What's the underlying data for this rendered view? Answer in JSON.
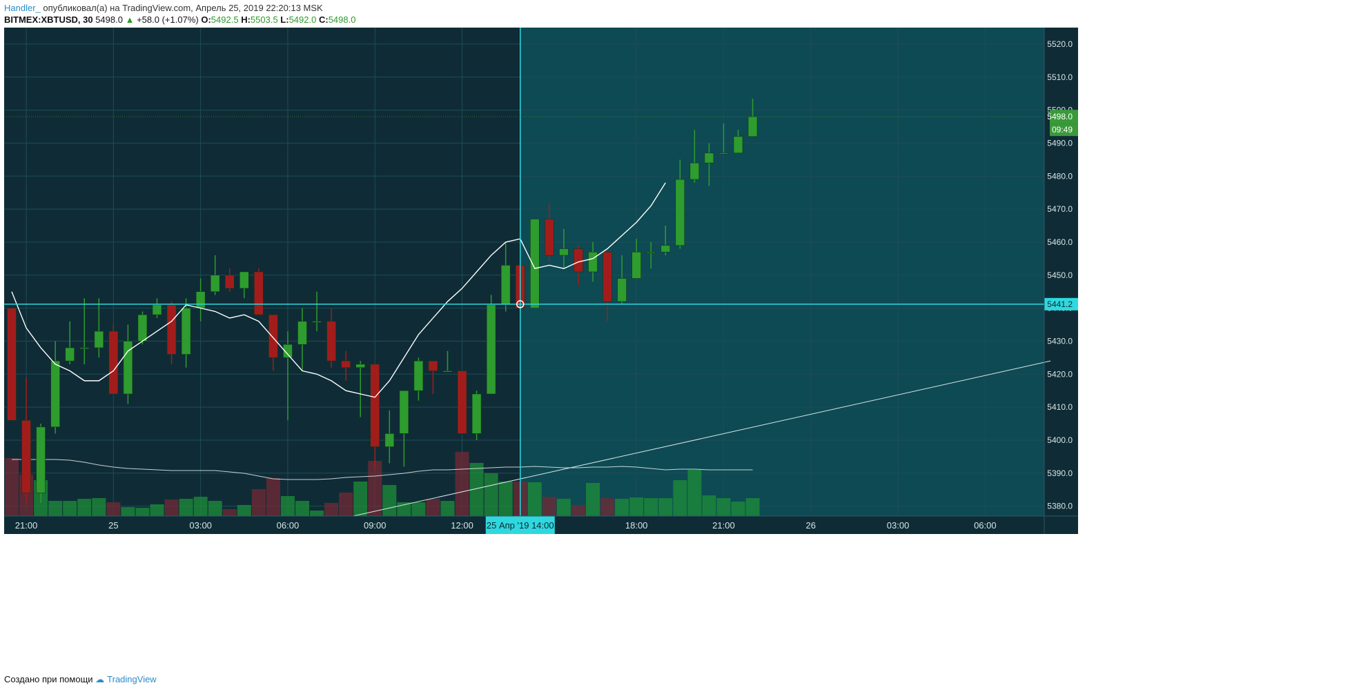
{
  "header": {
    "author": "Handler_",
    "published": "опубликовал(а) на TradingView.com, Апрель 25, 2019 22:20:13 MSK",
    "symbol": "BITMEX:XBTUSD, 30",
    "last": "5498.0",
    "change": "+58.0 (+1.07%)",
    "o_label": "O:",
    "o": "5492.5",
    "h_label": "H:",
    "h": "5503.5",
    "l_label": "L:",
    "l": "5492.0",
    "c_label": "C:",
    "c": "5498.0"
  },
  "footer": {
    "text": "Создано при помощи",
    "brand": "TradingView"
  },
  "colors": {
    "bg_left": "#0f2c36",
    "bg_right": "#0e4a53",
    "grid": "#1f4d57",
    "up": "#2e9c2e",
    "down": "#a31c1c",
    "ma": "#ffffff",
    "crosshair": "#2fd8df",
    "axis_text": "#d8e4e6",
    "price_tag": "#3a9a3a"
  },
  "chart_data": {
    "type": "candlestick",
    "y_ticks": [
      5380,
      5390,
      5400,
      5410,
      5420,
      5430,
      5440,
      5450,
      5460,
      5470,
      5480,
      5490,
      5500,
      5510,
      5520
    ],
    "ylim": [
      5377,
      5525
    ],
    "x_ticks": [
      {
        "label": "21:00",
        "i": 1
      },
      {
        "label": "25",
        "i": 7
      },
      {
        "label": "03:00",
        "i": 13
      },
      {
        "label": "06:00",
        "i": 19
      },
      {
        "label": "09:00",
        "i": 25
      },
      {
        "label": "12:00",
        "i": 31
      },
      {
        "label": "18:00",
        "i": 43
      },
      {
        "label": "21:00",
        "i": 49
      },
      {
        "label": "26",
        "i": 55
      },
      {
        "label": "03:00",
        "i": 61
      },
      {
        "label": "06:00",
        "i": 67
      }
    ],
    "candles": [
      {
        "o": 5440,
        "h": 5440,
        "l": 5406,
        "c": 5406
      },
      {
        "o": 5406,
        "h": 5419,
        "l": 5381,
        "c": 5384
      },
      {
        "o": 5384,
        "h": 5405,
        "l": 5381,
        "c": 5404
      },
      {
        "o": 5404,
        "h": 5430,
        "l": 5402,
        "c": 5424
      },
      {
        "o": 5424,
        "h": 5436,
        "l": 5423,
        "c": 5428
      },
      {
        "o": 5428,
        "h": 5443,
        "l": 5423,
        "c": 5428
      },
      {
        "o": 5428,
        "h": 5443,
        "l": 5425,
        "c": 5433
      },
      {
        "o": 5433,
        "h": 5435,
        "l": 5414,
        "c": 5414
      },
      {
        "o": 5414,
        "h": 5435,
        "l": 5411,
        "c": 5430
      },
      {
        "o": 5430,
        "h": 5439,
        "l": 5429,
        "c": 5438
      },
      {
        "o": 5438,
        "h": 5443,
        "l": 5437,
        "c": 5441
      },
      {
        "o": 5441,
        "h": 5442,
        "l": 5423,
        "c": 5426
      },
      {
        "o": 5426,
        "h": 5443,
        "l": 5422,
        "c": 5440
      },
      {
        "o": 5440,
        "h": 5449,
        "l": 5436,
        "c": 5445
      },
      {
        "o": 5445,
        "h": 5456,
        "l": 5444,
        "c": 5450
      },
      {
        "o": 5450,
        "h": 5452,
        "l": 5445,
        "c": 5446
      },
      {
        "o": 5446,
        "h": 5451,
        "l": 5443,
        "c": 5451
      },
      {
        "o": 5451,
        "h": 5452,
        "l": 5438,
        "c": 5438
      },
      {
        "o": 5438,
        "h": 5438,
        "l": 5421,
        "c": 5425
      },
      {
        "o": 5425,
        "h": 5433,
        "l": 5406,
        "c": 5429
      },
      {
        "o": 5429,
        "h": 5440,
        "l": 5421,
        "c": 5436
      },
      {
        "o": 5436,
        "h": 5445,
        "l": 5433,
        "c": 5436
      },
      {
        "o": 5436,
        "h": 5440,
        "l": 5422,
        "c": 5424
      },
      {
        "o": 5424,
        "h": 5427,
        "l": 5418,
        "c": 5422
      },
      {
        "o": 5422,
        "h": 5424,
        "l": 5407,
        "c": 5423
      },
      {
        "o": 5423,
        "h": 5423,
        "l": 5391,
        "c": 5398
      },
      {
        "o": 5398,
        "h": 5409,
        "l": 5393,
        "c": 5402
      },
      {
        "o": 5402,
        "h": 5415,
        "l": 5392,
        "c": 5415
      },
      {
        "o": 5415,
        "h": 5425,
        "l": 5412,
        "c": 5424
      },
      {
        "o": 5424,
        "h": 5424,
        "l": 5414,
        "c": 5421
      },
      {
        "o": 5421,
        "h": 5427,
        "l": 5421,
        "c": 5421
      },
      {
        "o": 5421,
        "h": 5421,
        "l": 5402,
        "c": 5402
      },
      {
        "o": 5402,
        "h": 5415,
        "l": 5400,
        "c": 5414
      },
      {
        "o": 5414,
        "h": 5444,
        "l": 5414,
        "c": 5441
      },
      {
        "o": 5441,
        "h": 5460,
        "l": 5439,
        "c": 5453
      },
      {
        "o": 5453,
        "h": 5453,
        "l": 5440,
        "c": 5440
      },
      {
        "o": 5440,
        "h": 5467,
        "l": 5440,
        "c": 5467
      },
      {
        "o": 5467,
        "h": 5472,
        "l": 5454,
        "c": 5456
      },
      {
        "o": 5456,
        "h": 5464,
        "l": 5452,
        "c": 5458
      },
      {
        "o": 5458,
        "h": 5459,
        "l": 5447,
        "c": 5451
      },
      {
        "o": 5451,
        "h": 5460,
        "l": 5448,
        "c": 5457
      },
      {
        "o": 5457,
        "h": 5457,
        "l": 5436,
        "c": 5442
      },
      {
        "o": 5442,
        "h": 5456,
        "l": 5441,
        "c": 5449
      },
      {
        "o": 5449,
        "h": 5461,
        "l": 5449,
        "c": 5457
      },
      {
        "o": 5457,
        "h": 5460,
        "l": 5452,
        "c": 5457
      },
      {
        "o": 5457,
        "h": 5465,
        "l": 5456,
        "c": 5459
      },
      {
        "o": 5459,
        "h": 5485,
        "l": 5458,
        "c": 5479
      },
      {
        "o": 5479,
        "h": 5494,
        "l": 5478,
        "c": 5484
      },
      {
        "o": 5484,
        "h": 5490,
        "l": 5477,
        "c": 5487
      },
      {
        "o": 5487,
        "h": 5496,
        "l": 5487,
        "c": 5487
      },
      {
        "o": 5487,
        "h": 5494,
        "l": 5487,
        "c": 5492
      },
      {
        "o": 5492,
        "h": 5503.5,
        "l": 5492,
        "c": 5498
      }
    ],
    "ma": [
      5445,
      5434,
      5428,
      5423,
      5421,
      5418,
      5418,
      5421,
      5427,
      5430,
      5433,
      5436,
      5441,
      5440,
      5439,
      5437,
      5438,
      5436,
      5431,
      5426,
      5421,
      5420,
      5418,
      5415,
      5414,
      5413,
      5418,
      5425,
      5432,
      5437,
      5442,
      5446,
      5451,
      5456,
      5460,
      5461,
      5452,
      5453,
      5452,
      5454,
      5455,
      5458,
      5462,
      5466,
      5471,
      5478
    ],
    "ma_start": 0,
    "volume": [
      84,
      60,
      52,
      22,
      22,
      25,
      26,
      20,
      13,
      12,
      17,
      24,
      25,
      28,
      22,
      10,
      16,
      39,
      55,
      29,
      22,
      8,
      19,
      34,
      50,
      80,
      45,
      20,
      20,
      25,
      22,
      93,
      77,
      62,
      50,
      50,
      49,
      28,
      25,
      16,
      48,
      26,
      25,
      27,
      26,
      26,
      52,
      67,
      30,
      26,
      21,
      26
    ],
    "vol_ma": [
      62,
      62,
      62,
      62,
      61,
      58,
      54,
      51,
      49,
      48,
      47,
      46,
      46,
      46,
      46,
      44,
      42,
      38,
      34,
      33,
      33,
      33,
      34,
      36,
      37,
      38,
      40,
      42,
      45,
      47,
      47,
      48,
      49,
      50,
      51,
      51,
      52,
      51,
      50,
      50,
      51,
      51,
      52,
      51,
      49,
      47,
      48,
      48,
      47,
      47,
      47,
      47
    ],
    "crosshair": {
      "price_label": "5441.2",
      "date_label": "25 Апр '19   14:00",
      "i": 35,
      "price": 5441.2
    },
    "last_price_label": "5498.0",
    "countdown_label": "09:49",
    "trendline": {
      "from": {
        "i": 23.5,
        "price": 5377
      },
      "to": {
        "i": 71.5,
        "price": 5424
      }
    }
  }
}
